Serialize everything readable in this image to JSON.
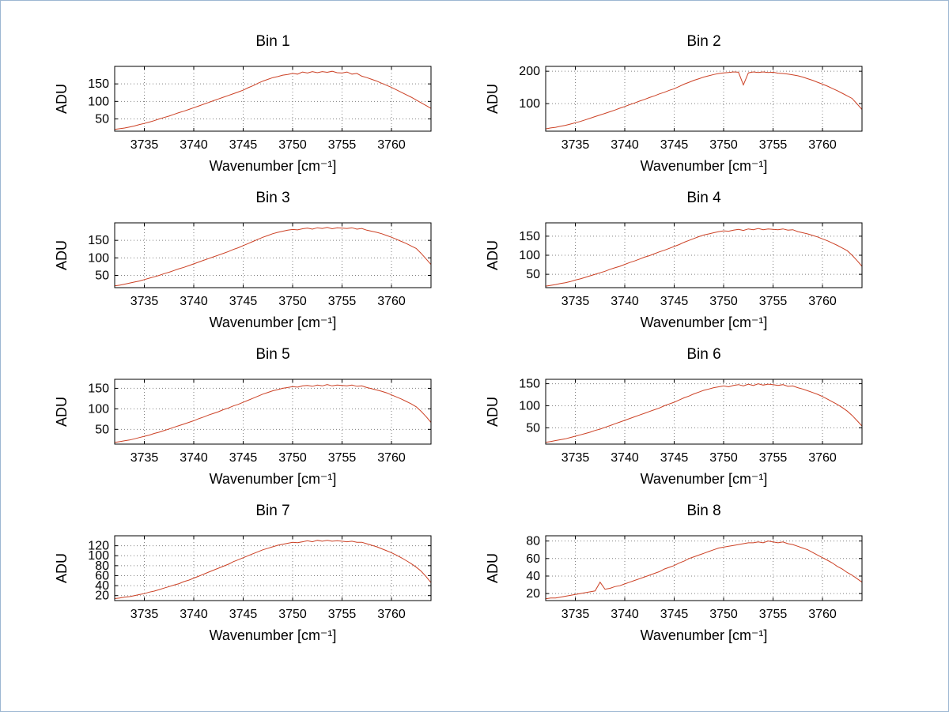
{
  "window": {
    "background": "#ffffff",
    "border_color": "#9db7d2"
  },
  "colors": {
    "line": "#cc4125",
    "grid": "#808080",
    "axis": "#000000",
    "text": "#000000"
  },
  "chart_data": [
    {
      "type": "line",
      "title": "Bin 1",
      "xlabel": "Wavenumber [cm⁻¹]",
      "ylabel": "ADU",
      "xlim": [
        3732,
        3764
      ],
      "ylim": [
        15,
        200
      ],
      "xticks": [
        3735,
        3740,
        3745,
        3750,
        3755,
        3760
      ],
      "yticks": [
        50,
        100,
        150
      ],
      "grid": true,
      "legend": "none",
      "x_start": 3732,
      "x_step": 0.5,
      "y": [
        20,
        22,
        24,
        27,
        30,
        34,
        37,
        41,
        45,
        50,
        54,
        58,
        63,
        68,
        72,
        77,
        82,
        87,
        92,
        97,
        102,
        107,
        112,
        117,
        122,
        127,
        132,
        139,
        145,
        152,
        158,
        163,
        168,
        171,
        175,
        177,
        180,
        178,
        184,
        181,
        185,
        182,
        185,
        183,
        186,
        182,
        181,
        184,
        178,
        180,
        172,
        168,
        163,
        158,
        152,
        146,
        140,
        133,
        126,
        119,
        112,
        104,
        96,
        88,
        80
      ]
    },
    {
      "type": "line",
      "title": "Bin 2",
      "xlabel": "Wavenumber [cm⁻¹]",
      "ylabel": "ADU",
      "xlim": [
        3732,
        3764
      ],
      "ylim": [
        15,
        215
      ],
      "xticks": [
        3735,
        3740,
        3745,
        3750,
        3755,
        3760
      ],
      "yticks": [
        100,
        200
      ],
      "grid": true,
      "legend": "none",
      "x_start": 3732,
      "x_step": 0.5,
      "y": [
        22,
        25,
        27,
        30,
        33,
        37,
        41,
        45,
        50,
        55,
        60,
        65,
        70,
        75,
        80,
        86,
        91,
        97,
        102,
        108,
        113,
        119,
        124,
        130,
        135,
        141,
        146,
        153,
        160,
        166,
        172,
        177,
        182,
        186,
        190,
        193,
        195,
        196,
        198,
        197,
        158,
        195,
        198,
        196,
        198,
        196,
        197,
        194,
        193,
        191,
        189,
        186,
        182,
        177,
        172,
        166,
        160,
        154,
        147,
        140,
        132,
        124,
        116,
        99,
        82
      ]
    },
    {
      "type": "line",
      "title": "Bin 3",
      "xlabel": "Wavenumber [cm⁻¹]",
      "ylabel": "ADU",
      "xlim": [
        3732,
        3764
      ],
      "ylim": [
        15,
        200
      ],
      "xticks": [
        3735,
        3740,
        3745,
        3750,
        3755,
        3760
      ],
      "yticks": [
        50,
        100,
        150
      ],
      "grid": true,
      "legend": "none",
      "x_start": 3732,
      "x_step": 0.5,
      "y": [
        20,
        22,
        25,
        28,
        31,
        34,
        38,
        42,
        46,
        50,
        55,
        59,
        64,
        69,
        73,
        78,
        83,
        88,
        93,
        98,
        103,
        108,
        113,
        118,
        124,
        129,
        135,
        141,
        147,
        153,
        159,
        164,
        169,
        173,
        176,
        179,
        181,
        180,
        183,
        185,
        182,
        186,
        184,
        187,
        183,
        186,
        185,
        184,
        186,
        182,
        184,
        179,
        176,
        173,
        169,
        164,
        159,
        153,
        147,
        141,
        134,
        127,
        113,
        97,
        81
      ]
    },
    {
      "type": "line",
      "title": "Bin 4",
      "xlabel": "Wavenumber [cm⁻¹]",
      "ylabel": "ADU",
      "xlim": [
        3732,
        3764
      ],
      "ylim": [
        15,
        185
      ],
      "xticks": [
        3735,
        3740,
        3745,
        3750,
        3755,
        3760
      ],
      "yticks": [
        50,
        100,
        150
      ],
      "grid": true,
      "legend": "none",
      "x_start": 3732,
      "x_step": 0.5,
      "y": [
        19,
        21,
        23,
        26,
        28,
        31,
        35,
        38,
        42,
        46,
        50,
        54,
        58,
        63,
        67,
        71,
        76,
        81,
        85,
        90,
        95,
        99,
        104,
        109,
        113,
        118,
        123,
        128,
        134,
        139,
        144,
        149,
        153,
        156,
        159,
        162,
        164,
        163,
        166,
        168,
        165,
        169,
        167,
        170,
        167,
        169,
        168,
        167,
        169,
        166,
        167,
        162,
        159,
        156,
        152,
        148,
        143,
        138,
        132,
        126,
        119,
        112,
        100,
        86,
        71
      ]
    },
    {
      "type": "line",
      "title": "Bin 5",
      "xlabel": "Wavenumber [cm⁻¹]",
      "ylabel": "ADU",
      "xlim": [
        3732,
        3764
      ],
      "ylim": [
        14,
        172
      ],
      "xticks": [
        3735,
        3740,
        3745,
        3750,
        3755,
        3760
      ],
      "yticks": [
        50,
        100,
        150
      ],
      "grid": true,
      "legend": "none",
      "x_start": 3732,
      "x_step": 0.5,
      "y": [
        18,
        20,
        22,
        24,
        27,
        30,
        33,
        36,
        40,
        43,
        47,
        51,
        55,
        59,
        63,
        67,
        71,
        76,
        80,
        85,
        89,
        93,
        98,
        102,
        107,
        111,
        116,
        121,
        126,
        131,
        136,
        140,
        144,
        147,
        150,
        152,
        154,
        153,
        156,
        157,
        155,
        158,
        156,
        159,
        156,
        158,
        157,
        156,
        158,
        155,
        156,
        152,
        149,
        146,
        143,
        139,
        134,
        129,
        124,
        118,
        112,
        105,
        94,
        81,
        67
      ]
    },
    {
      "type": "line",
      "title": "Bin 6",
      "xlabel": "Wavenumber [cm⁻¹]",
      "ylabel": "ADU",
      "xlim": [
        3732,
        3764
      ],
      "ylim": [
        13,
        160
      ],
      "xticks": [
        3735,
        3740,
        3745,
        3750,
        3755,
        3760
      ],
      "yticks": [
        50,
        100,
        150
      ],
      "grid": true,
      "legend": "none",
      "x_start": 3732,
      "x_step": 0.5,
      "y": [
        17,
        19,
        21,
        23,
        25,
        28,
        31,
        34,
        37,
        40,
        44,
        47,
        51,
        55,
        59,
        63,
        67,
        71,
        75,
        79,
        83,
        87,
        91,
        95,
        100,
        104,
        108,
        113,
        118,
        122,
        127,
        131,
        135,
        138,
        141,
        143,
        145,
        143,
        146,
        148,
        145,
        149,
        146,
        150,
        147,
        149,
        148,
        146,
        148,
        144,
        145,
        141,
        138,
        134,
        130,
        126,
        121,
        115,
        109,
        103,
        96,
        88,
        78,
        66,
        54
      ]
    },
    {
      "type": "line",
      "title": "Bin 7",
      "xlabel": "Wavenumber [cm⁻¹]",
      "ylabel": "ADU",
      "xlim": [
        3732,
        3764
      ],
      "ylim": [
        10,
        140
      ],
      "xticks": [
        3735,
        3740,
        3745,
        3750,
        3755,
        3760
      ],
      "yticks": [
        20,
        40,
        60,
        80,
        100,
        120
      ],
      "grid": true,
      "legend": "none",
      "x_start": 3732,
      "x_step": 0.5,
      "y": [
        14,
        15,
        17,
        18,
        20,
        22,
        24,
        27,
        29,
        32,
        35,
        38,
        41,
        44,
        48,
        51,
        55,
        59,
        63,
        67,
        71,
        75,
        79,
        83,
        88,
        92,
        96,
        100,
        104,
        108,
        112,
        115,
        118,
        121,
        123,
        125,
        127,
        126,
        128,
        130,
        128,
        131,
        129,
        131,
        129,
        130,
        129,
        128,
        129,
        127,
        127,
        124,
        121,
        118,
        114,
        110,
        106,
        101,
        96,
        90,
        84,
        77,
        69,
        58,
        46
      ]
    },
    {
      "type": "line",
      "title": "Bin 8",
      "xlabel": "Wavenumber [cm⁻¹]",
      "ylabel": "ADU",
      "xlim": [
        3732,
        3764
      ],
      "ylim": [
        12,
        86
      ],
      "xticks": [
        3735,
        3740,
        3745,
        3750,
        3755,
        3760
      ],
      "yticks": [
        20,
        40,
        60,
        80
      ],
      "grid": true,
      "legend": "none",
      "x_start": 3732,
      "x_step": 0.5,
      "y": [
        14,
        15,
        15,
        16,
        17,
        18,
        19,
        20,
        21,
        22,
        23,
        33,
        25,
        26,
        28,
        29,
        31,
        33,
        35,
        37,
        39,
        41,
        43,
        45,
        48,
        50,
        52,
        55,
        57,
        60,
        62,
        64,
        66,
        68,
        70,
        72,
        73,
        74,
        75,
        76,
        77,
        78,
        78,
        79,
        78,
        80,
        79,
        78,
        79,
        77,
        76,
        74,
        72,
        70,
        67,
        64,
        61,
        58,
        55,
        51,
        48,
        44,
        41,
        37,
        33
      ]
    }
  ]
}
